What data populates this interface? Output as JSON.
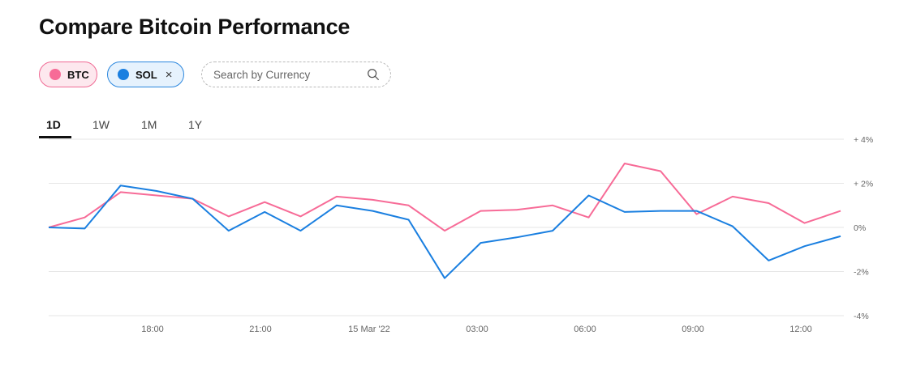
{
  "page": {
    "title": "Compare Bitcoin Performance"
  },
  "chips": [
    {
      "label": "BTC",
      "color": "#f76b97",
      "removable": false
    },
    {
      "label": "SOL",
      "color": "#1a7fe0",
      "removable": true,
      "close_glyph": "×"
    }
  ],
  "search": {
    "placeholder": "Search by Currency",
    "icon": "search-icon"
  },
  "tabs": [
    {
      "label": "1D",
      "active": true
    },
    {
      "label": "1W",
      "active": false
    },
    {
      "label": "1M",
      "active": false
    },
    {
      "label": "1Y",
      "active": false
    }
  ],
  "chart_data": {
    "type": "line",
    "x_tick_labels": [
      "18:00",
      "21:00",
      "15 Mar '22",
      "03:00",
      "06:00",
      "09:00",
      "12:00"
    ],
    "y_tick_labels": [
      "+ 4%",
      "+ 2%",
      "0%",
      "-2%",
      "-4%"
    ],
    "ylim": [
      -4,
      4
    ],
    "grid": true,
    "series": [
      {
        "name": "BTC",
        "color": "#f76b97",
        "values": [
          0.0,
          0.45,
          1.6,
          1.45,
          1.3,
          0.5,
          1.15,
          0.5,
          1.4,
          1.25,
          1.0,
          -0.15,
          0.75,
          0.8,
          1.0,
          0.45,
          2.9,
          2.55,
          0.6,
          1.4,
          1.1,
          0.2,
          0.75
        ]
      },
      {
        "name": "SOL",
        "color": "#1a7fe0",
        "values": [
          0.0,
          -0.05,
          1.9,
          1.65,
          1.3,
          -0.15,
          0.7,
          -0.15,
          1.0,
          0.75,
          0.35,
          -2.3,
          -0.7,
          -0.45,
          -0.15,
          1.45,
          0.7,
          0.75,
          0.75,
          0.05,
          -1.5,
          -0.85,
          -0.4
        ]
      }
    ]
  }
}
